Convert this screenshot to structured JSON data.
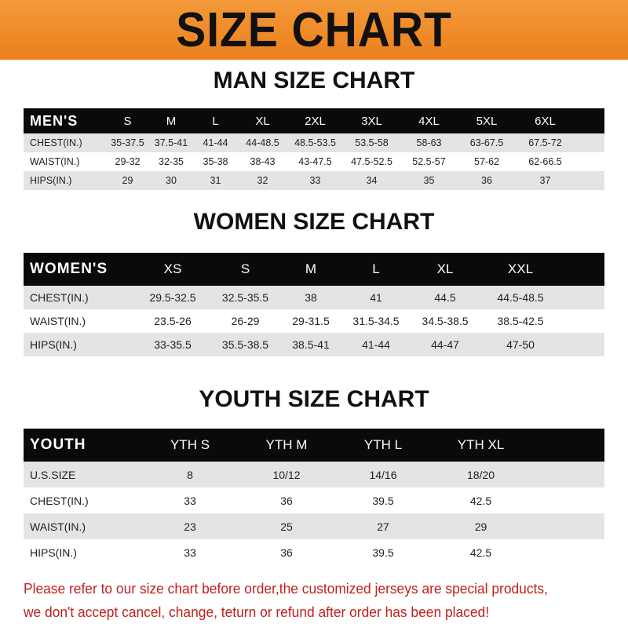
{
  "banner_title": "SIZE CHART",
  "men": {
    "title": "MAN SIZE CHART",
    "header": [
      "MEN'S",
      "S",
      "M",
      "L",
      "XL",
      "2XL",
      "3XL",
      "4XL",
      "5XL",
      "6XL"
    ],
    "rows": [
      [
        "CHEST(IN.)",
        "35-37.5",
        "37.5-41",
        "41-44",
        "44-48.5",
        "48.5-53.5",
        "53.5-58",
        "58-63",
        "63-67.5",
        "67.5-72"
      ],
      [
        "WAIST(IN.)",
        "29-32",
        "32-35",
        "35-38",
        "38-43",
        "43-47.5",
        "47.5-52.5",
        "52.5-57",
        "57-62",
        "62-66.5"
      ],
      [
        "HIPS(IN.)",
        "29",
        "30",
        "31",
        "32",
        "33",
        "34",
        "35",
        "36",
        "37"
      ]
    ]
  },
  "women": {
    "title": "WOMEN SIZE CHART",
    "header": [
      "WOMEN'S",
      "XS",
      "S",
      "M",
      "L",
      "XL",
      "XXL"
    ],
    "rows": [
      [
        "CHEST(IN.)",
        "29.5-32.5",
        "32.5-35.5",
        "38",
        "41",
        "44.5",
        "44.5-48.5"
      ],
      [
        "WAIST(IN.)",
        "23.5-26",
        "26-29",
        "29-31.5",
        "31.5-34.5",
        "34.5-38.5",
        "38.5-42.5"
      ],
      [
        "HIPS(IN.)",
        "33-35.5",
        "35.5-38.5",
        "38.5-41",
        "41-44",
        "44-47",
        "47-50"
      ]
    ]
  },
  "youth": {
    "title": "YOUTH SIZE CHART",
    "header": [
      "YOUTH",
      "YTH S",
      "YTH M",
      "YTH L",
      "YTH XL"
    ],
    "rows": [
      [
        "U.S.SIZE",
        "8",
        "10/12",
        "14/16",
        "18/20"
      ],
      [
        "CHEST(IN.)",
        "33",
        "36",
        "39.5",
        "42.5"
      ],
      [
        "WAIST(IN.)",
        "23",
        "25",
        "27",
        "29"
      ],
      [
        "HIPS(IN.)",
        "33",
        "36",
        "39.5",
        "42.5"
      ]
    ]
  },
  "note_lines": [
    "Please refer to our size chart before order,the customized jerseys are special products,",
    "we don't accept cancel, change, teturn or refund after order has been placed!"
  ],
  "colors": {
    "banner": "#ec7f1c",
    "header_row": "#0a0a0a",
    "alt_row": "#e4e4e4",
    "note": "#c0201e"
  }
}
